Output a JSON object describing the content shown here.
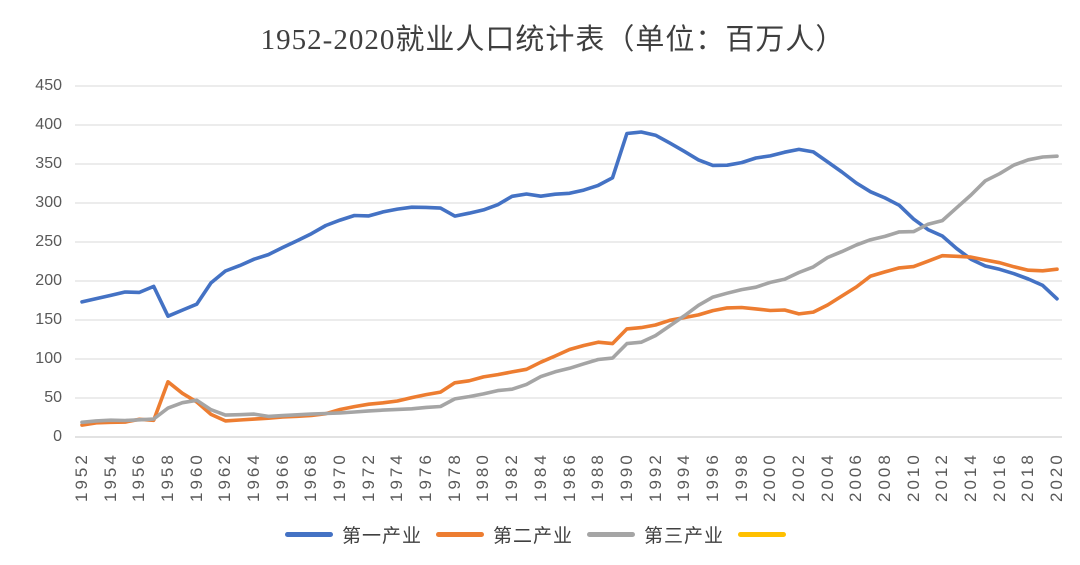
{
  "title": "1952-2020就业人口统计表（单位：百万人）",
  "colors": {
    "background": "#ffffff",
    "grid": "#d9d9d9",
    "axis_line": "#c6c6c6",
    "axis_text": "#595959",
    "title_text": "#3f3f3f",
    "legend_text": "#404040"
  },
  "chart_data": {
    "type": "line",
    "title": "1952-2020就业人口统计表（单位：百万人）",
    "unit": "百万人",
    "xlabel": "",
    "ylabel": "",
    "ylim": [
      0,
      450
    ],
    "y_tick_step": 50,
    "y_tick_labels": [
      "0",
      "50",
      "100",
      "150",
      "200",
      "250",
      "300",
      "350",
      "400",
      "450"
    ],
    "grid": true,
    "legend_position": "bottom",
    "x": [
      1952,
      1953,
      1954,
      1955,
      1956,
      1957,
      1958,
      1959,
      1960,
      1961,
      1962,
      1963,
      1964,
      1965,
      1966,
      1967,
      1968,
      1969,
      1970,
      1971,
      1972,
      1973,
      1974,
      1975,
      1976,
      1977,
      1978,
      1979,
      1980,
      1981,
      1982,
      1983,
      1984,
      1985,
      1986,
      1987,
      1988,
      1989,
      1990,
      1991,
      1992,
      1993,
      1994,
      1995,
      1996,
      1997,
      1998,
      1999,
      2000,
      2001,
      2002,
      2003,
      2004,
      2005,
      2006,
      2007,
      2008,
      2009,
      2010,
      2011,
      2012,
      2013,
      2014,
      2015,
      2016,
      2017,
      2018,
      2019,
      2020
    ],
    "x_tick_labels": [
      "1952",
      "1954",
      "1956",
      "1958",
      "1960",
      "1962",
      "1964",
      "1966",
      "1968",
      "1970",
      "1972",
      "1974",
      "1976",
      "1978",
      "1980",
      "1982",
      "1984",
      "1986",
      "1988",
      "1990",
      "1992",
      "1994",
      "1996",
      "1998",
      "2000",
      "2002",
      "2004",
      "2006",
      "2008",
      "2010",
      "2012",
      "2014",
      "2016",
      "2018",
      "2020"
    ],
    "series": [
      {
        "name": "第一产业",
        "color": "#4472c4",
        "values": [
          173.2,
          177.5,
          181.5,
          185.9,
          185.4,
          193.1,
          154.9,
          162.7,
          170.2,
          197.5,
          212.8,
          219.7,
          228.0,
          233.9,
          242.9,
          251.7,
          260.6,
          271.2,
          278.1,
          284.0,
          283.4,
          288.6,
          292.2,
          294.6,
          294.4,
          293.4,
          283.2,
          286.9,
          291.2,
          297.8,
          308.6,
          311.5,
          308.7,
          311.3,
          312.5,
          316.6,
          322.5,
          332.3,
          389.1,
          391.0,
          386.9,
          376.8,
          366.3,
          355.3,
          348.2,
          348.4,
          351.8,
          357.7,
          360.4,
          365.1,
          368.7,
          365.5,
          352.7,
          339.7,
          325.6,
          314.4,
          306.5,
          297.1,
          279.3,
          265.9,
          257.7,
          241.7,
          227.9,
          219.2,
          215.0,
          209.4,
          202.6,
          194.4,
          177.2
        ]
      },
      {
        "name": "第二产业",
        "color": "#ed7d31",
        "values": [
          15.3,
          18.2,
          18.8,
          19.1,
          22.7,
          21.4,
          70.8,
          56.0,
          45.0,
          29.0,
          20.6,
          21.8,
          22.9,
          24.1,
          25.6,
          26.6,
          27.6,
          29.9,
          35.2,
          39.0,
          42.1,
          43.9,
          46.2,
          50.5,
          54.3,
          57.5,
          69.5,
          72.1,
          77.1,
          80.0,
          83.5,
          86.8,
          95.9,
          103.8,
          112.2,
          117.3,
          121.5,
          119.8,
          138.6,
          140.2,
          143.6,
          149.6,
          153.1,
          156.6,
          162.0,
          165.5,
          166.0,
          164.2,
          162.2,
          162.8,
          157.8,
          160.1,
          169.2,
          180.8,
          192.3,
          206.3,
          211.7,
          216.8,
          218.4,
          225.4,
          232.4,
          231.7,
          230.6,
          226.9,
          223.5,
          218.2,
          213.9,
          213.1,
          215.1
        ]
      },
      {
        "name": "第三产业",
        "color": "#a5a5a5",
        "values": [
          18.8,
          20.7,
          21.6,
          21.2,
          22.1,
          23.1,
          37.0,
          44.0,
          47.0,
          35.0,
          28.1,
          28.6,
          29.3,
          26.4,
          27.4,
          28.4,
          29.4,
          30.1,
          30.9,
          32.1,
          33.4,
          34.5,
          35.4,
          36.2,
          37.9,
          39.1,
          48.9,
          51.8,
          55.3,
          59.5,
          61.3,
          67.4,
          77.4,
          83.6,
          88.1,
          93.9,
          99.3,
          101.1,
          119.8,
          121.6,
          130.0,
          142.6,
          155.2,
          168.8,
          179.3,
          184.3,
          189.0,
          192.1,
          198.2,
          202.3,
          210.9,
          218.1,
          230.1,
          237.7,
          246.1,
          253.0,
          257.2,
          263.0,
          263.3,
          272.8,
          277.4,
          293.8,
          310.3,
          328.4,
          337.6,
          348.7,
          355.4,
          359.0,
          360.0
        ]
      },
      {
        "name": "",
        "color": "#ffc000",
        "values": []
      }
    ]
  }
}
